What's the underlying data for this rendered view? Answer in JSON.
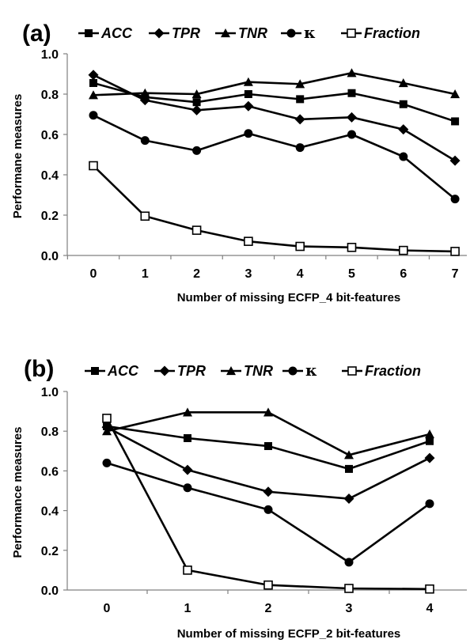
{
  "chart_data": [
    {
      "type": "line",
      "panel_label": "(a)",
      "xlabel": "Number of missing ECFP_4 bit-features",
      "ylabel": "Performane measures",
      "x": [
        0,
        1,
        2,
        3,
        4,
        5,
        6,
        7
      ],
      "xticks": [
        "0",
        "1",
        "2",
        "3",
        "4",
        "5",
        "6",
        "7"
      ],
      "yticks": [
        "0.0",
        "0.2",
        "0.4",
        "0.6",
        "0.8",
        "1.0"
      ],
      "ylim": [
        0,
        1
      ],
      "grid": false,
      "legend_position": "top",
      "series": [
        {
          "name": "ACC",
          "marker": "square",
          "values": [
            0.855,
            0.785,
            0.76,
            0.8,
            0.775,
            0.805,
            0.75,
            0.665
          ]
        },
        {
          "name": "TPR",
          "marker": "diamond",
          "values": [
            0.895,
            0.77,
            0.72,
            0.74,
            0.675,
            0.685,
            0.625,
            0.47
          ]
        },
        {
          "name": "TNR",
          "marker": "triangle",
          "values": [
            0.795,
            0.805,
            0.8,
            0.86,
            0.85,
            0.905,
            0.855,
            0.8
          ]
        },
        {
          "name": "κ",
          "marker": "circle",
          "values": [
            0.695,
            0.57,
            0.52,
            0.605,
            0.535,
            0.6,
            0.49,
            0.28
          ]
        },
        {
          "name": "Fraction",
          "marker": "open-square",
          "values": [
            0.445,
            0.195,
            0.125,
            0.07,
            0.045,
            0.04,
            0.025,
            0.02
          ]
        }
      ]
    },
    {
      "type": "line",
      "panel_label": "(b)",
      "xlabel": "Number of missing ECFP_2 bit-features",
      "ylabel": "Performance measures",
      "x": [
        0,
        1,
        2,
        3,
        4
      ],
      "xticks": [
        "0",
        "1",
        "2",
        "3",
        "4"
      ],
      "yticks": [
        "0.0",
        "0.2",
        "0.4",
        "0.6",
        "0.8",
        "1.0"
      ],
      "ylim": [
        0,
        1
      ],
      "grid": false,
      "legend_position": "top",
      "series": [
        {
          "name": "ACC",
          "marker": "square",
          "values": [
            0.825,
            0.765,
            0.725,
            0.61,
            0.75
          ]
        },
        {
          "name": "TPR",
          "marker": "diamond",
          "values": [
            0.82,
            0.605,
            0.495,
            0.46,
            0.665
          ]
        },
        {
          "name": "TNR",
          "marker": "triangle",
          "values": [
            0.8,
            0.895,
            0.895,
            0.68,
            0.785
          ]
        },
        {
          "name": "κ",
          "marker": "circle",
          "values": [
            0.64,
            0.515,
            0.405,
            0.14,
            0.435
          ]
        },
        {
          "name": "Fraction",
          "marker": "open-square",
          "values": [
            0.865,
            0.1,
            0.025,
            0.008,
            0.005
          ]
        }
      ]
    }
  ]
}
